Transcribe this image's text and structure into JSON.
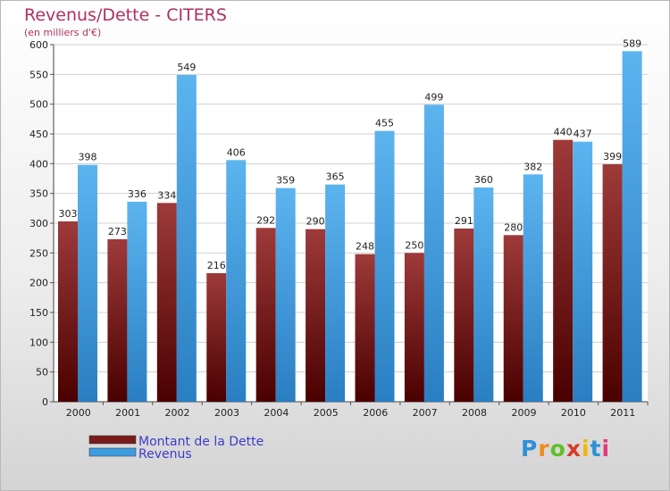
{
  "chart_data": {
    "type": "bar",
    "title": "Revenus/Dette - CITERS",
    "subtitle": "(en milliers d'€)",
    "categories": [
      "2000",
      "2001",
      "2002",
      "2003",
      "2004",
      "2005",
      "2006",
      "2007",
      "2008",
      "2009",
      "2010",
      "2011"
    ],
    "series": [
      {
        "name": "Montant de la Dette",
        "color": "#7a1a1a",
        "values": [
          303,
          273,
          334,
          216,
          292,
          290,
          248,
          250,
          291,
          280,
          440,
          399
        ]
      },
      {
        "name": "Revenus",
        "color": "#3d9be0",
        "values": [
          398,
          336,
          549,
          406,
          359,
          365,
          455,
          499,
          360,
          382,
          437,
          589
        ]
      }
    ],
    "ylim": [
      0,
      600
    ],
    "yticks": [
      0,
      50,
      100,
      150,
      200,
      250,
      300,
      350,
      400,
      450,
      500,
      550,
      600
    ],
    "grid": true,
    "legend_position": "bottom-left"
  },
  "logo": {
    "letters": [
      "P",
      "r",
      "o",
      "x",
      "i",
      "t",
      "i"
    ],
    "colors": [
      "#2f8fd8",
      "#f08a1c",
      "#5fbf2a",
      "#d83b2a",
      "#f0b800",
      "#2f8fd8",
      "#e23a7a"
    ]
  }
}
